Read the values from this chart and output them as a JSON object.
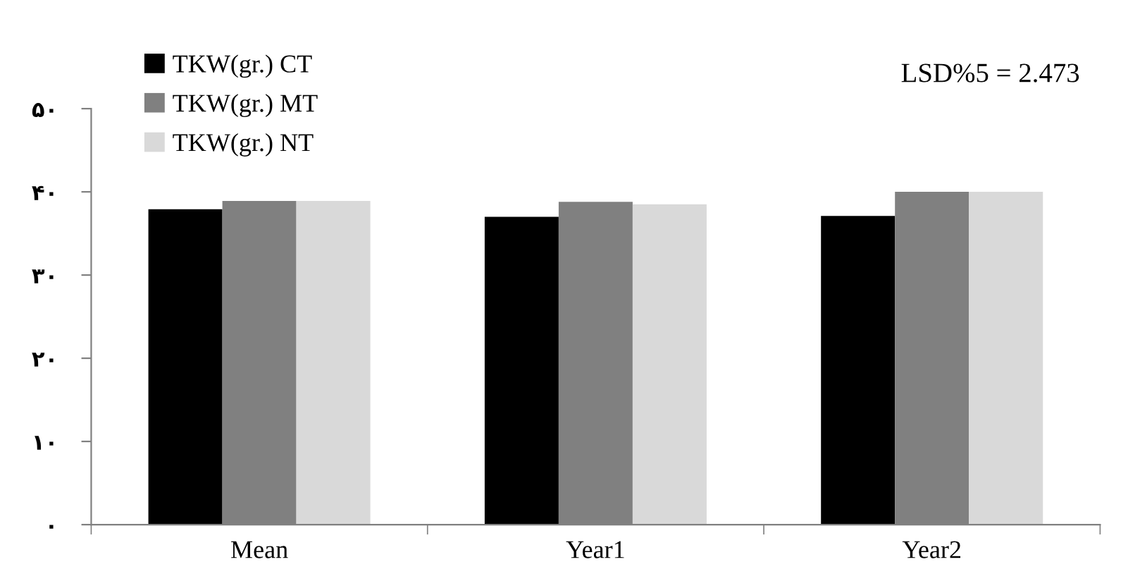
{
  "chart_data": {
    "type": "bar",
    "categories": [
      "Mean",
      "Year1",
      "Year2"
    ],
    "series": [
      {
        "name": "TKW(gr.) CT",
        "color": "#000000",
        "values": [
          37.9,
          37.0,
          37.1
        ]
      },
      {
        "name": "TKW(gr.) MT",
        "color": "#808080",
        "values": [
          38.9,
          38.8,
          40.0
        ]
      },
      {
        "name": "TKW(gr.) NT",
        "color": "#d9d9d9",
        "values": [
          38.9,
          38.5,
          40.0
        ]
      }
    ],
    "ylim": [
      0,
      50
    ],
    "yticks": [
      {
        "value": 0,
        "label": "۰"
      },
      {
        "value": 10,
        "label": "۱۰"
      },
      {
        "value": 20,
        "label": "۲۰"
      },
      {
        "value": 30,
        "label": "۳۰"
      },
      {
        "value": 40,
        "label": "۴۰"
      },
      {
        "value": 50,
        "label": "۵۰"
      }
    ],
    "annotations": [
      "LSD%5 = 2.473"
    ],
    "legend": "top left",
    "grid": false
  }
}
